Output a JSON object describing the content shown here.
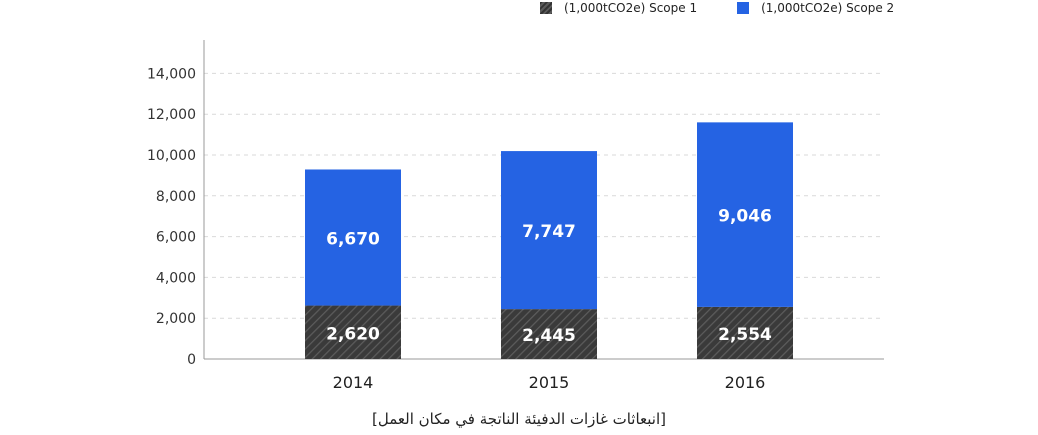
{
  "legend": {
    "scope1": "(1,000tCO2e) Scope 1",
    "scope2": "(1,000tCO2e) Scope 2"
  },
  "colors": {
    "scope1": "#3a3a3a",
    "scope2": "#2563e3",
    "grid": "#d9d9d9",
    "axis": "#999999"
  },
  "caption": "[انبعاثات غازات الدفيئة الناتجة في مكان العمل]",
  "chart_data": {
    "type": "bar",
    "stacked": true,
    "categories": [
      "2014",
      "2015",
      "2016"
    ],
    "series": [
      {
        "name": "(1,000tCO2e) Scope 1",
        "values": [
          2620,
          2445,
          2554
        ],
        "labels": [
          "2,620",
          "2,445",
          "2,554"
        ]
      },
      {
        "name": "(1,000tCO2e) Scope 2",
        "values": [
          6670,
          7747,
          9046
        ],
        "labels": [
          "6,670",
          "7,747",
          "9,046"
        ]
      }
    ],
    "ylim": [
      0,
      14000
    ],
    "yticks": [
      0,
      2000,
      4000,
      6000,
      8000,
      10000,
      12000,
      14000
    ],
    "ytick_labels": [
      "0",
      "2,000",
      "4,000",
      "6,000",
      "8,000",
      "10,000",
      "12,000",
      "14,000"
    ],
    "grid": true,
    "legend_position": "top-right"
  }
}
